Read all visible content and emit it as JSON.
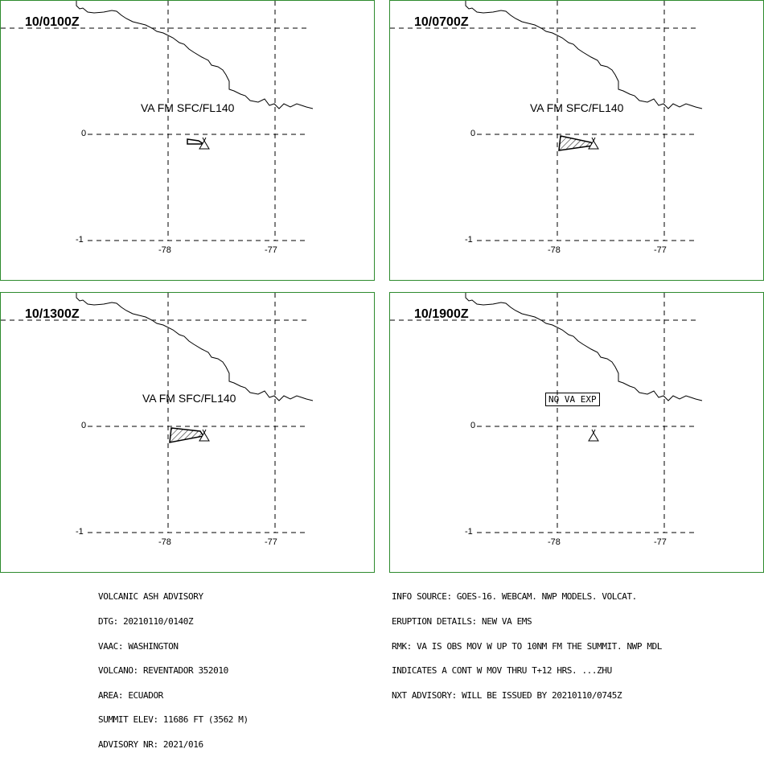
{
  "panels": [
    {
      "time": "10/0100Z",
      "altitude": "VA FM SFC/FL140",
      "cloud": "small",
      "lat_labels": [
        "0",
        "-1"
      ],
      "lon_labels": [
        "-78",
        "-77"
      ]
    },
    {
      "time": "10/0700Z",
      "altitude": "VA FM SFC/FL140",
      "cloud": "medium",
      "lat_labels": [
        "0",
        "-1"
      ],
      "lon_labels": [
        "-78",
        "-77"
      ]
    },
    {
      "time": "10/1300Z",
      "altitude": "VA FM SFC/FL140",
      "cloud": "large",
      "lat_labels": [
        "0",
        "-1"
      ],
      "lon_labels": [
        "-78",
        "-77"
      ]
    },
    {
      "time": "10/1900Z",
      "altitude": "NO VA EXP",
      "cloud": "none",
      "lat_labels": [
        "0",
        "-1"
      ],
      "lon_labels": [
        "-78",
        "-77"
      ]
    }
  ],
  "advisory_left": [
    "VOLCANIC ASH ADVISORY",
    "DTG: 20210110/0140Z",
    "VAAC: WASHINGTON",
    "VOLCANO: REVENTADOR 352010",
    "AREA: ECUADOR",
    "SUMMIT ELEV: 11686 FT (3562 M)",
    "ADVISORY NR: 2021/016"
  ],
  "advisory_right": [
    "INFO SOURCE: GOES-16. WEBCAM. NWP MODELS. VOLCAT.",
    "ERUPTION DETAILS: NEW VA EMS",
    "RMK: VA IS OBS MOV W UP TO 10NM FM THE SUMMIT. NWP MDL",
    "INDICATES A CONT W MOV THRU T+12 HRS. ...ZHU",
    "NXT ADVISORY: WILL BE ISSUED BY 20210110/0745Z"
  ],
  "colors": {
    "panel_border": "#2e8b2e",
    "lines": "#000000"
  },
  "icons": {
    "volcano": "volcano-triangle-icon"
  }
}
